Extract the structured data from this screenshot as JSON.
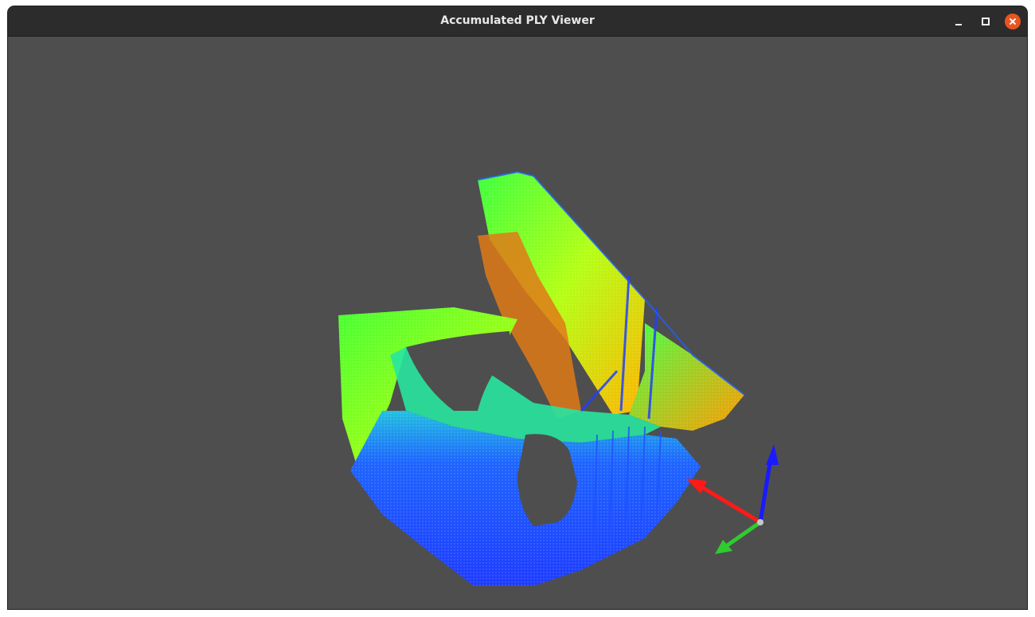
{
  "window": {
    "title": "Accumulated PLY Viewer"
  },
  "controls": {
    "minimize_icon": "minimize-icon",
    "maximize_icon": "maximize-icon",
    "close_icon": "close-icon"
  },
  "viewport": {
    "background": "#4e4e4e",
    "colormap": [
      "#1e3cff",
      "#1e90ff",
      "#00e6c8",
      "#32ff32",
      "#c8ff00",
      "#ffc800",
      "#ff4b00"
    ]
  },
  "axes": {
    "x_color": "#ff1a1a",
    "y_color": "#2ecc2e",
    "z_color": "#1a1aff"
  }
}
